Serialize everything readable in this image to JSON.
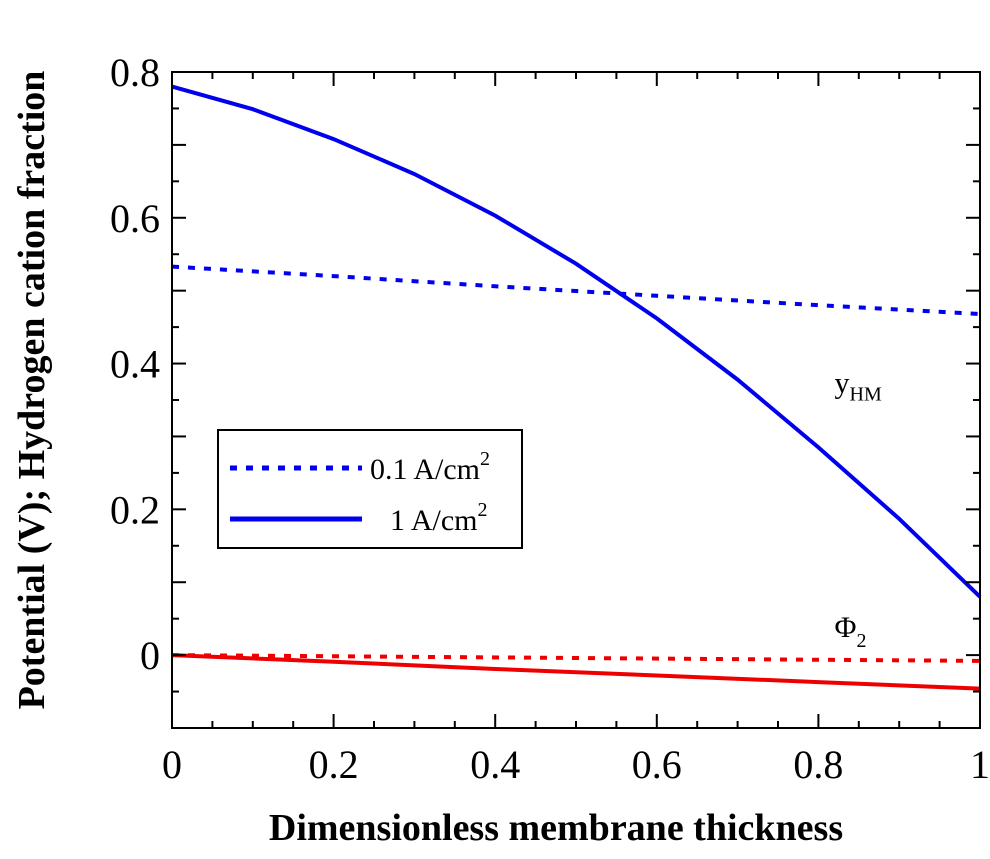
{
  "chart_data": {
    "type": "line",
    "xlabel": "Dimensionless membrane thickness",
    "ylabel": "Potential (V); Hydrogen cation fraction",
    "xlim": [
      0,
      1
    ],
    "ylim": [
      -0.1,
      0.8
    ],
    "xticks": [
      {
        "value": 0,
        "label": "0"
      },
      {
        "value": 0.2,
        "label": "0.2"
      },
      {
        "value": 0.4,
        "label": "0.4"
      },
      {
        "value": 0.6,
        "label": "0.6"
      },
      {
        "value": 0.8,
        "label": "0.8"
      },
      {
        "value": 1,
        "label": "1"
      }
    ],
    "yticks": [
      {
        "value": 0,
        "label": "0"
      },
      {
        "value": 0.2,
        "label": "0.2"
      },
      {
        "value": 0.4,
        "label": "0.4"
      },
      {
        "value": 0.6,
        "label": "0.6"
      },
      {
        "value": 0.8,
        "label": "0.8"
      }
    ],
    "grid": false,
    "legend": {
      "placement": "middle-left",
      "entries": [
        {
          "style": "dotted",
          "label": "0.1 A/cm",
          "superscript": "2"
        },
        {
          "style": "solid",
          "label": "1 A/cm",
          "superscript": "2"
        }
      ]
    },
    "annotations": [
      {
        "text": "y",
        "subscript": "HM",
        "x": 0.82,
        "y": 0.36
      },
      {
        "text": "Φ",
        "subscript": "2",
        "x": 0.82,
        "y": 0.025
      }
    ],
    "series": [
      {
        "legend_index": 0,
        "dash": "dotted",
        "color": "#0000ee",
        "x": [
          0,
          0.2,
          0.4,
          0.6,
          0.8,
          1.0
        ],
        "y": [
          0.533,
          0.52,
          0.506,
          0.493,
          0.48,
          0.468
        ]
      },
      {
        "legend_index": 1,
        "dash": "solid",
        "color": "#0000ee",
        "x": [
          0,
          0.1,
          0.2,
          0.3,
          0.4,
          0.5,
          0.6,
          0.7,
          0.8,
          0.9,
          1.0
        ],
        "y": [
          0.78,
          0.749,
          0.708,
          0.66,
          0.603,
          0.537,
          0.462,
          0.378,
          0.285,
          0.187,
          0.08
        ]
      },
      {
        "legend_index": 0,
        "dash": "dotted",
        "color": "#ee0000",
        "x": [
          0,
          0.5,
          1.0
        ],
        "y": [
          0.0,
          -0.004,
          -0.008
        ]
      },
      {
        "legend_index": 1,
        "dash": "solid",
        "color": "#ee0000",
        "x": [
          0,
          0.2,
          0.4,
          0.6,
          0.8,
          1.0
        ],
        "y": [
          0.0,
          -0.009,
          -0.019,
          -0.028,
          -0.037,
          -0.046
        ]
      }
    ]
  }
}
